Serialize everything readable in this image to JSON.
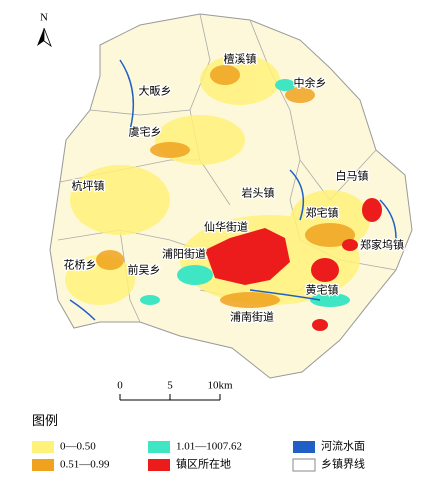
{
  "north_label": "N",
  "places": [
    "檀溪镇",
    "中余乡",
    "大畈乡",
    "虞宅乡",
    "杭坪镇",
    "岩头镇",
    "白马镇",
    "郑宅镇",
    "仙华街道",
    "郑家坞镇",
    "浦阳街道",
    "花桥乡",
    "前吴乡",
    "黄宅镇",
    "浦南街道"
  ],
  "scale_bar": {
    "labels": [
      "0",
      "5",
      "10km"
    ]
  },
  "legend": {
    "title": "图例",
    "items": [
      {
        "label": "0—0.50",
        "color": "#fff27a"
      },
      {
        "label": "1.01—1007.62",
        "color": "#3ee6c4"
      },
      {
        "label": "河流水面",
        "color": "#1f5fc6"
      },
      {
        "label": "0.51—0.99",
        "color": "#f0a21e"
      },
      {
        "label": "镇区所在地",
        "color": "#ec1c1c"
      },
      {
        "label": "乡镇界线",
        "color": "#ffffff"
      }
    ]
  }
}
